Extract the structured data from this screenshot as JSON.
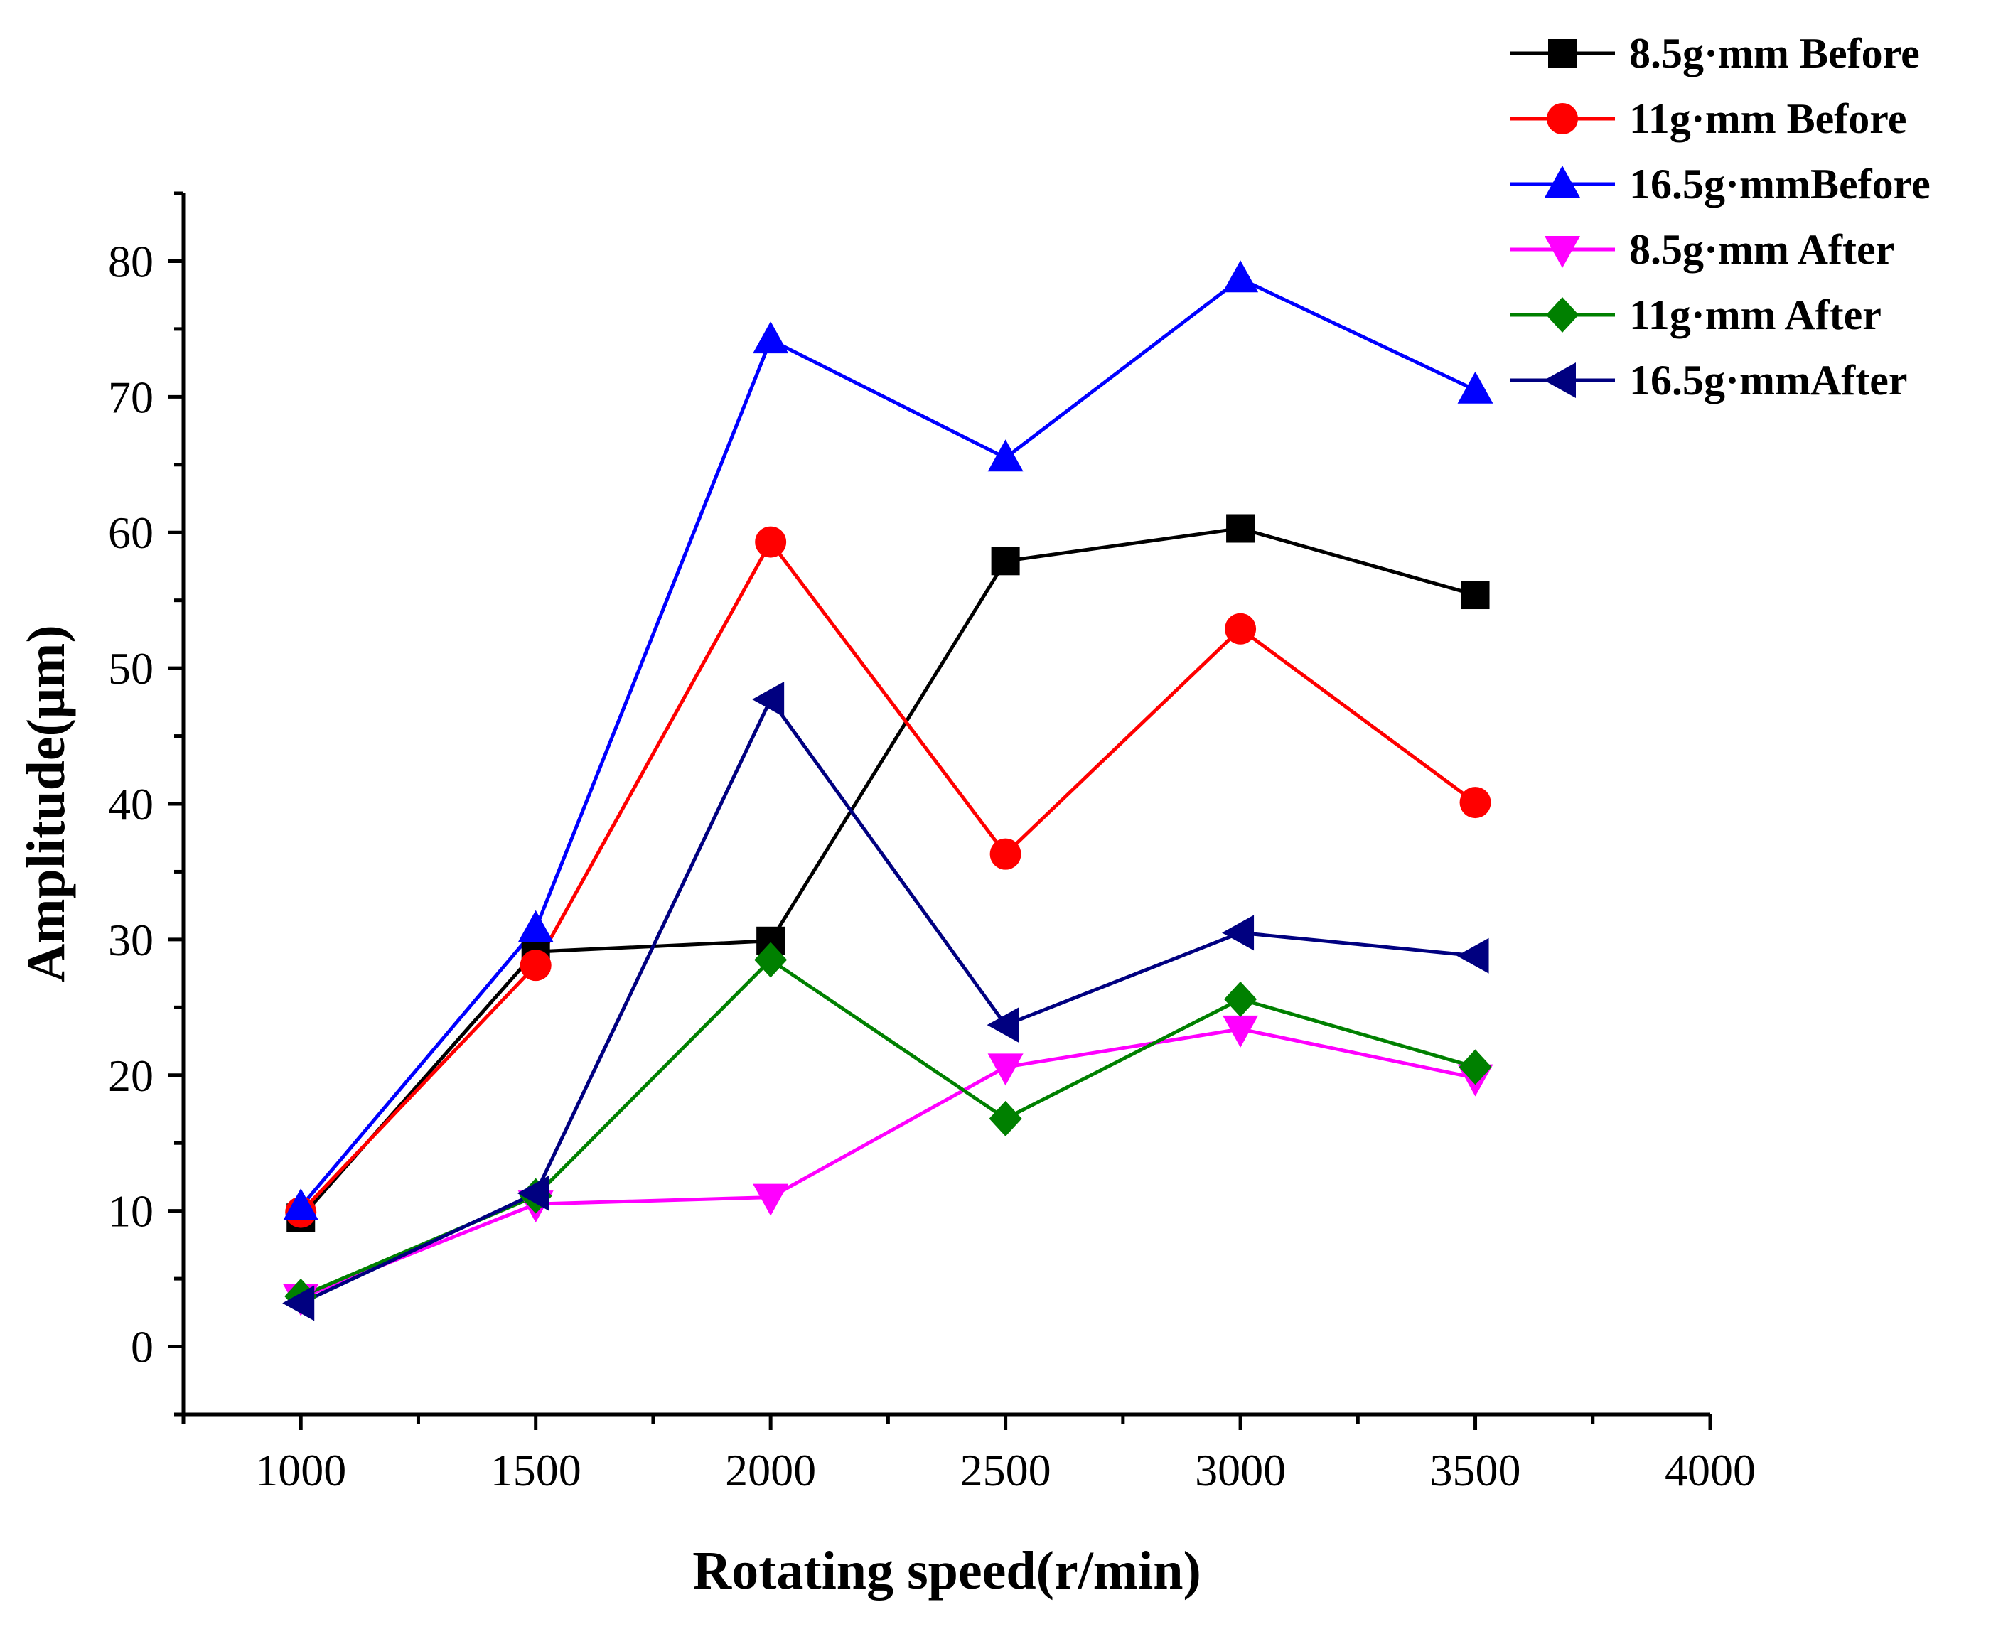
{
  "chart_data": {
    "type": "line",
    "title": "",
    "xlabel": "Rotating speed(r/min)",
    "ylabel": "Amplitude(μm)",
    "xlim": [
      750,
      4000
    ],
    "ylim": [
      -5,
      85
    ],
    "xticks": [
      1000,
      1500,
      2000,
      2500,
      3000,
      3500,
      4000
    ],
    "yticks": [
      0,
      10,
      20,
      30,
      40,
      50,
      60,
      70,
      80
    ],
    "x": [
      1000,
      1500,
      2000,
      2500,
      3000,
      3500
    ],
    "grid": false,
    "legend_position": "top-right",
    "series": [
      {
        "name": "8.5g·mm  Before",
        "color": "#000000",
        "marker": "square",
        "values": [
          9.5,
          29.1,
          29.9,
          57.9,
          60.3,
          55.4
        ]
      },
      {
        "name": "11g·mm   Before",
        "color": "#ff0000",
        "marker": "circle",
        "values": [
          9.9,
          28.1,
          59.3,
          36.3,
          52.9,
          40.1
        ]
      },
      {
        "name": "16.5g·mmBefore",
        "color": "#0000ff",
        "marker": "triangle-up",
        "values": [
          10.3,
          30.8,
          74.2,
          65.5,
          78.7,
          70.5
        ]
      },
      {
        "name": "8.5g·mm  After",
        "color": "#ff00ff",
        "marker": "triangle-down",
        "values": [
          3.6,
          10.5,
          11.0,
          20.6,
          23.4,
          19.8
        ]
      },
      {
        "name": "11g·mm   After",
        "color": "#008000",
        "marker": "diamond",
        "values": [
          3.7,
          11.1,
          28.5,
          16.8,
          25.6,
          20.6
        ]
      },
      {
        "name": "16.5g·mmAfter",
        "color": "#000080",
        "marker": "triangle-left",
        "values": [
          3.2,
          11.3,
          47.7,
          23.7,
          30.5,
          28.8
        ]
      }
    ]
  }
}
